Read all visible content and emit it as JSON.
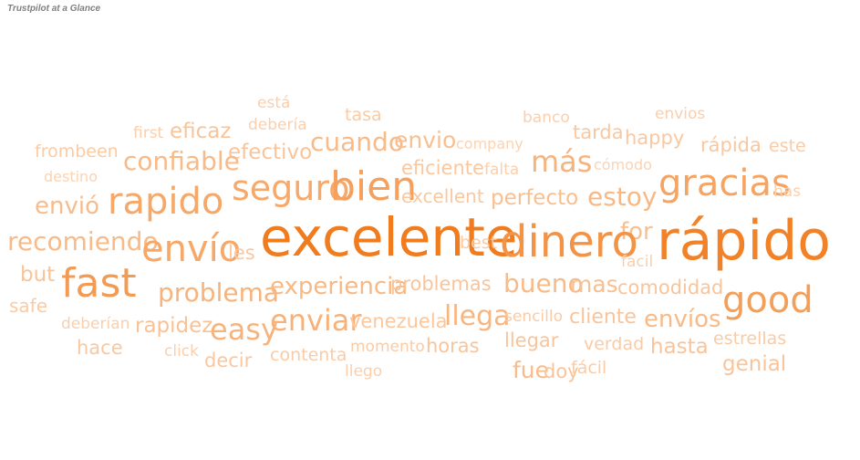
{
  "page": {
    "title": "Trustpilot at a Glance"
  },
  "chart_data": {
    "type": "word-cloud",
    "title": "Trustpilot at a Glance",
    "color_scale": {
      "low": "#fbd3b2",
      "high": "#f07c1e"
    },
    "words": [
      {
        "text": "está",
        "w": 12
      },
      {
        "text": "tasa",
        "w": 14
      },
      {
        "text": "banco",
        "w": 12
      },
      {
        "text": "envios",
        "w": 12
      },
      {
        "text": "first",
        "w": 12
      },
      {
        "text": "eficaz",
        "w": 18
      },
      {
        "text": "debería",
        "w": 12
      },
      {
        "text": "tarda",
        "w": 16
      },
      {
        "text": "happy",
        "w": 16
      },
      {
        "text": "frombeen",
        "w": 14
      },
      {
        "text": "efectivo",
        "w": 18
      },
      {
        "text": "cuando",
        "w": 26
      },
      {
        "text": "envio",
        "w": 22
      },
      {
        "text": "company",
        "w": 11
      },
      {
        "text": "rápida",
        "w": 16
      },
      {
        "text": "este",
        "w": 14
      },
      {
        "text": "confiable",
        "w": 26
      },
      {
        "text": "más",
        "w": 32
      },
      {
        "text": "cómodo",
        "w": 11
      },
      {
        "text": "destino",
        "w": 11
      },
      {
        "text": "eficiente",
        "w": 16
      },
      {
        "text": "falta",
        "w": 12
      },
      {
        "text": "seguro",
        "w": 42
      },
      {
        "text": "bien",
        "w": 52
      },
      {
        "text": "gracias",
        "w": 48
      },
      {
        "text": "has",
        "w": 12
      },
      {
        "text": "envió",
        "w": 24
      },
      {
        "text": "rapido",
        "w": 44
      },
      {
        "text": "excellent",
        "w": 16
      },
      {
        "text": "perfecto",
        "w": 22
      },
      {
        "text": "estoy",
        "w": 28
      },
      {
        "text": "for",
        "w": 22
      },
      {
        "text": "recomiendo",
        "w": 26
      },
      {
        "text": "envío",
        "w": 44
      },
      {
        "text": "les",
        "w": 16
      },
      {
        "text": "excelente",
        "w": 100
      },
      {
        "text": "best",
        "w": 14
      },
      {
        "text": "dinero",
        "w": 68
      },
      {
        "text": "rápido",
        "w": 92
      },
      {
        "text": "facil",
        "w": 12
      },
      {
        "text": "but",
        "w": 18
      },
      {
        "text": "fast",
        "w": 58
      },
      {
        "text": "problema",
        "w": 32
      },
      {
        "text": "experiencia",
        "w": 28
      },
      {
        "text": "problemas",
        "w": 18
      },
      {
        "text": "bueno",
        "w": 26
      },
      {
        "text": "mas",
        "w": 22
      },
      {
        "text": "comodidad",
        "w": 18
      },
      {
        "text": "good",
        "w": 54
      },
      {
        "text": "safe",
        "w": 14
      },
      {
        "text": "deberían",
        "w": 12
      },
      {
        "text": "rapidez",
        "w": 20
      },
      {
        "text": "easy",
        "w": 32
      },
      {
        "text": "enviar",
        "w": 34
      },
      {
        "text": "venezuela",
        "w": 16
      },
      {
        "text": "llega",
        "w": 30
      },
      {
        "text": "sencillo",
        "w": 14
      },
      {
        "text": "cliente",
        "w": 18
      },
      {
        "text": "envíos",
        "w": 26
      },
      {
        "text": "hace",
        "w": 16
      },
      {
        "text": "click",
        "w": 12
      },
      {
        "text": "momento",
        "w": 14
      },
      {
        "text": "horas",
        "w": 18
      },
      {
        "text": "llegar",
        "w": 18
      },
      {
        "text": "verdad",
        "w": 14
      },
      {
        "text": "hasta",
        "w": 18
      },
      {
        "text": "estrellas",
        "w": 14
      },
      {
        "text": "decir",
        "w": 16
      },
      {
        "text": "contenta",
        "w": 14
      },
      {
        "text": "genial",
        "w": 18
      },
      {
        "text": "llego",
        "w": 12
      },
      {
        "text": "fue",
        "w": 24
      },
      {
        "text": "doy",
        "w": 18
      },
      {
        "text": "fácil",
        "w": 14
      }
    ]
  }
}
